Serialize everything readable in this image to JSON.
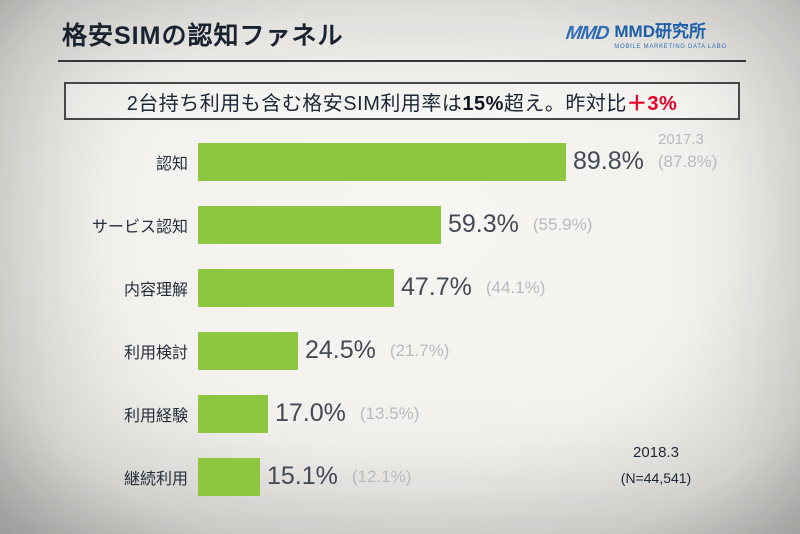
{
  "slide": {
    "title": "格安SIMの認知ファネル",
    "logo": {
      "mark": "MMD",
      "name": "MMD研究所",
      "caption": "MOBILE MARKETING DATA LABO"
    },
    "headline": {
      "part1": "2台持ち利用も含む格安SIM利用率は",
      "strong": "15%",
      "part2": "超え。昨対比",
      "accent": "＋3%",
      "accent_color": "#e60027"
    },
    "prev_year_label": "2017.3",
    "footnote": {
      "year": "2018.3",
      "sample": "(N=44,541)"
    }
  },
  "chart_data": {
    "type": "bar",
    "orientation": "horizontal",
    "title": "格安SIMの認知ファネル",
    "categories": [
      "認知",
      "サービス認知",
      "内容理解",
      "利用検討",
      "利用経験",
      "継続利用"
    ],
    "series": [
      {
        "name": "2018.3",
        "values": [
          89.8,
          59.3,
          47.7,
          24.5,
          17.0,
          15.1
        ]
      },
      {
        "name": "2017.3",
        "values": [
          87.8,
          55.9,
          44.1,
          21.7,
          13.5,
          12.1
        ]
      }
    ],
    "value_labels": [
      "89.8%",
      "59.3%",
      "47.7%",
      "24.5%",
      "17.0%",
      "15.1%"
    ],
    "prev_labels": [
      "(87.8%)",
      "(55.9%)",
      "(44.1%)",
      "(21.7%)",
      "(13.5%)",
      "(12.1%)"
    ],
    "bar_color": "#8dc63f",
    "xlim": [
      0,
      100
    ],
    "legend_position": "none",
    "grid": false
  }
}
